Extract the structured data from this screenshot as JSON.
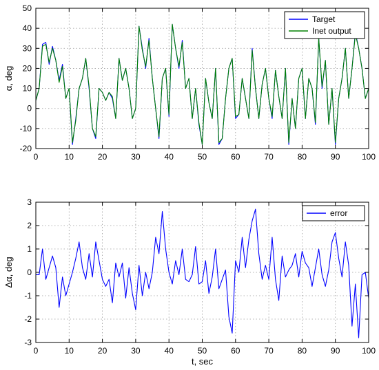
{
  "colors": {
    "target": "#0000ff",
    "inet_output": "#008000",
    "error": "#0000ff"
  },
  "chart_data": [
    {
      "type": "line",
      "xlabel": "",
      "ylabel": "α, deg",
      "xlim": [
        0,
        100
      ],
      "ylim": [
        -20,
        50
      ],
      "xticks": [
        0,
        10,
        20,
        30,
        40,
        50,
        60,
        70,
        80,
        90,
        100
      ],
      "yticks": [
        -20,
        -10,
        0,
        10,
        20,
        30,
        40,
        50
      ],
      "grid": true,
      "legend_position": "top-right",
      "series": [
        {
          "name": "Target",
          "color": "#0000ff",
          "x": [
            0,
            1,
            2,
            3,
            4,
            5,
            6,
            7,
            8,
            9,
            10,
            11,
            12,
            13,
            14,
            15,
            16,
            17,
            18,
            19,
            20,
            21,
            22,
            23,
            24,
            25,
            26,
            27,
            28,
            29,
            30,
            31,
            32,
            33,
            34,
            35,
            36,
            37,
            38,
            39,
            40,
            41,
            42,
            43,
            44,
            45,
            46,
            47,
            48,
            49,
            50,
            51,
            52,
            53,
            54,
            55,
            56,
            57,
            58,
            59,
            60,
            61,
            62,
            63,
            64,
            65,
            66,
            67,
            68,
            69,
            70,
            71,
            72,
            73,
            74,
            75,
            76,
            77,
            78,
            79,
            80,
            81,
            82,
            83,
            84,
            85,
            86,
            87,
            88,
            89,
            90,
            91,
            92,
            93,
            94,
            95,
            96,
            97,
            98,
            99,
            100
          ],
          "y": [
            4,
            10,
            32,
            33,
            22,
            31,
            24,
            14,
            22,
            5,
            10,
            -18,
            -5,
            10,
            15,
            25,
            10,
            -10,
            -15,
            10,
            8,
            4,
            8,
            5,
            -5,
            25,
            14,
            20,
            10,
            -5,
            0,
            41,
            30,
            20,
            35,
            15,
            0,
            -15,
            15,
            20,
            -4,
            42,
            30,
            20,
            34,
            10,
            15,
            -5,
            10,
            -8,
            -18,
            15,
            3,
            -5,
            20,
            -18,
            -15,
            5,
            20,
            25,
            -5,
            -3,
            15,
            5,
            -5,
            30,
            10,
            -5,
            12,
            20,
            5,
            -5,
            19,
            6,
            -5,
            20,
            -18,
            5,
            -10,
            15,
            20,
            -5,
            15,
            10,
            -8,
            35,
            10,
            24,
            -8,
            10,
            -18,
            5,
            15,
            30,
            5,
            20,
            38,
            30,
            20,
            5,
            10
          ]
        },
        {
          "name": "Inet output",
          "color": "#008000",
          "x": [
            0,
            1,
            2,
            3,
            4,
            5,
            6,
            7,
            8,
            9,
            10,
            11,
            12,
            13,
            14,
            15,
            16,
            17,
            18,
            19,
            20,
            21,
            22,
            23,
            24,
            25,
            26,
            27,
            28,
            29,
            30,
            31,
            32,
            33,
            34,
            35,
            36,
            37,
            38,
            39,
            40,
            41,
            42,
            43,
            44,
            45,
            46,
            47,
            48,
            49,
            50,
            51,
            52,
            53,
            54,
            55,
            56,
            57,
            58,
            59,
            60,
            61,
            62,
            63,
            64,
            65,
            66,
            67,
            68,
            69,
            70,
            71,
            72,
            73,
            74,
            75,
            76,
            77,
            78,
            79,
            80,
            81,
            82,
            83,
            84,
            85,
            86,
            87,
            88,
            89,
            90,
            91,
            92,
            93,
            94,
            95,
            96,
            97,
            98,
            99,
            100
          ],
          "y": [
            4,
            10,
            31,
            32,
            23,
            30,
            24,
            13,
            21,
            5,
            10,
            -17,
            -6,
            10,
            15,
            25,
            11,
            -10,
            -14,
            10,
            8,
            4,
            8,
            6,
            -5,
            25,
            14,
            20,
            10,
            -5,
            0,
            41,
            29,
            21,
            34,
            15,
            0,
            -14,
            15,
            20,
            -3,
            42,
            30,
            21,
            33,
            10,
            15,
            -5,
            10,
            -7,
            -18,
            15,
            3,
            -5,
            20,
            -17,
            -15,
            5,
            20,
            25,
            -4,
            -3,
            15,
            5,
            -5,
            29,
            10,
            -5,
            12,
            20,
            5,
            -4,
            19,
            6,
            -5,
            20,
            -17,
            5,
            -10,
            15,
            20,
            -5,
            15,
            10,
            -7,
            35,
            11,
            24,
            -8,
            10,
            -17,
            5,
            15,
            30,
            5,
            20,
            37,
            30,
            20,
            5,
            10
          ]
        }
      ]
    },
    {
      "type": "line",
      "xlabel": "t, sec",
      "ylabel": "Δα, deg",
      "xlim": [
        0,
        100
      ],
      "ylim": [
        -3,
        3
      ],
      "xticks": [
        0,
        10,
        20,
        30,
        40,
        50,
        60,
        70,
        80,
        90,
        100
      ],
      "yticks": [
        -3,
        -2,
        -1,
        0,
        1,
        2,
        3
      ],
      "grid": true,
      "legend_position": "top-right",
      "series": [
        {
          "name": "error",
          "color": "#0000ff",
          "x": [
            0,
            1,
            2,
            3,
            4,
            5,
            6,
            7,
            8,
            9,
            10,
            11,
            12,
            13,
            14,
            15,
            16,
            17,
            18,
            19,
            20,
            21,
            22,
            23,
            24,
            25,
            26,
            27,
            28,
            29,
            30,
            31,
            32,
            33,
            34,
            35,
            36,
            37,
            38,
            39,
            40,
            41,
            42,
            43,
            44,
            45,
            46,
            47,
            48,
            49,
            50,
            51,
            52,
            53,
            54,
            55,
            56,
            57,
            58,
            59,
            60,
            61,
            62,
            63,
            64,
            65,
            66,
            67,
            68,
            69,
            70,
            71,
            72,
            73,
            74,
            75,
            76,
            77,
            78,
            79,
            80,
            81,
            82,
            83,
            84,
            85,
            86,
            87,
            88,
            89,
            90,
            91,
            92,
            93,
            94,
            95,
            96,
            97,
            98,
            99,
            100
          ],
          "y": [
            -0.1,
            -0.1,
            1.0,
            -0.3,
            0.2,
            0.7,
            0.2,
            -1.5,
            -0.2,
            -1.0,
            -0.5,
            0.0,
            0.6,
            1.3,
            0.2,
            -0.3,
            0.8,
            -0.2,
            1.3,
            0.5,
            -0.3,
            -0.6,
            -0.3,
            -1.3,
            0.4,
            -0.2,
            0.4,
            -1.1,
            0.2,
            -0.9,
            -1.6,
            0.3,
            -1.0,
            0.0,
            -0.7,
            0.0,
            1.5,
            0.8,
            2.6,
            1.0,
            0.0,
            -0.5,
            0.5,
            -0.1,
            1.0,
            -0.3,
            -0.4,
            -0.1,
            1.1,
            -0.5,
            -0.4,
            0.5,
            -0.9,
            -0.2,
            1.0,
            -0.7,
            -0.3,
            0.1,
            -1.9,
            -2.6,
            0.5,
            0.0,
            1.5,
            0.2,
            1.4,
            2.2,
            2.7,
            0.8,
            -0.3,
            0.3,
            -0.3,
            1.5,
            -0.3,
            -1.2,
            0.7,
            -0.2,
            0.1,
            0.3,
            0.8,
            -0.2,
            0.9,
            0.4,
            0.2,
            -0.6,
            0.2,
            1.0,
            -0.1,
            -0.6,
            0.1,
            1.3,
            1.7,
            0.6,
            -0.2,
            1.3,
            0.3,
            -2.3,
            -0.5,
            -2.8,
            -0.1,
            0.0,
            -1.1
          ]
        }
      ]
    }
  ]
}
